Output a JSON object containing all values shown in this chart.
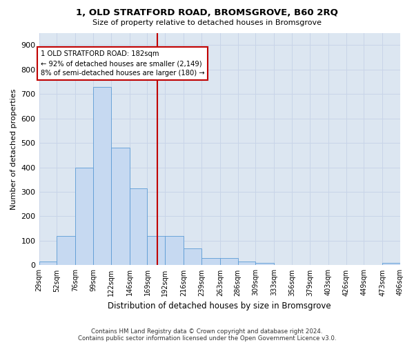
{
  "title": "1, OLD STRATFORD ROAD, BROMSGROVE, B60 2RQ",
  "subtitle": "Size of property relative to detached houses in Bromsgrove",
  "xlabel": "Distribution of detached houses by size in Bromsgrove",
  "ylabel": "Number of detached properties",
  "footnote1": "Contains HM Land Registry data © Crown copyright and database right 2024.",
  "footnote2": "Contains public sector information licensed under the Open Government Licence v3.0.",
  "bar_color": "#c6d9f1",
  "bar_edge_color": "#5b9bd5",
  "grid_color": "#c8d4e8",
  "background_color": "#dce6f1",
  "vline_x": 182,
  "vline_color": "#c00000",
  "annotation_line1": "1 OLD STRATFORD ROAD: 182sqm",
  "annotation_line2": "← 92% of detached houses are smaller (2,149)",
  "annotation_line3": "8% of semi-detached houses are larger (180) →",
  "annotation_box_color": "#c00000",
  "bin_edges": [
    29,
    52,
    76,
    99,
    122,
    146,
    169,
    192,
    216,
    239,
    263,
    286,
    309,
    333,
    356,
    379,
    403,
    426,
    449,
    473,
    496
  ],
  "bar_heights": [
    15,
    120,
    400,
    730,
    480,
    315,
    120,
    120,
    70,
    30,
    30,
    15,
    10,
    0,
    0,
    0,
    0,
    0,
    0,
    10
  ],
  "ylim": [
    0,
    950
  ],
  "yticks": [
    0,
    100,
    200,
    300,
    400,
    500,
    600,
    700,
    800,
    900
  ]
}
